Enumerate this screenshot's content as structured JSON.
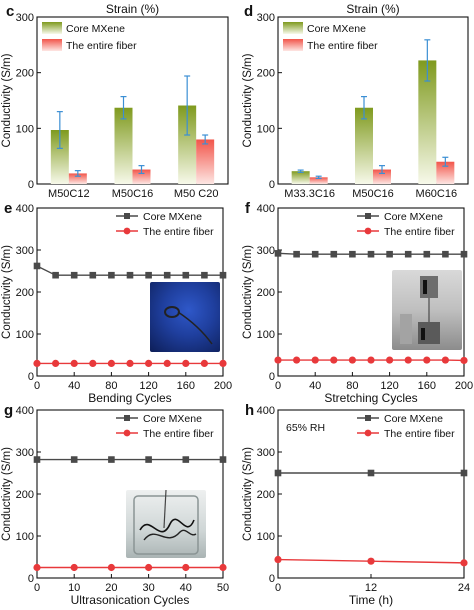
{
  "colors": {
    "core_line": "#4a4a4a",
    "fiber_line": "#e8393b",
    "error_bar": "#3b8fd4",
    "bar_core_top": "#7f9a1e",
    "bar_fiber_top": "#f2554a"
  },
  "photos": {
    "e": "hand-holding-fiber-photo",
    "f": "tensile-tester-photo",
    "g": "beaker-with-fibers-photo"
  },
  "chart_data": [
    {
      "panel": "c",
      "type": "bar",
      "title": "Strain (%)",
      "ylabel": "Conductivity (S/m)",
      "xlabel": "",
      "categories": [
        "M50C12",
        "M50C16",
        "M50 C20"
      ],
      "ylim": [
        0,
        300
      ],
      "yticks": [
        0,
        100,
        200,
        300
      ],
      "series": [
        {
          "name": "Core MXene",
          "values": [
            97,
            137,
            141
          ],
          "errors": [
            33,
            20,
            53
          ]
        },
        {
          "name": "The entire fiber",
          "values": [
            19,
            26,
            80
          ],
          "errors": [
            5,
            7,
            8
          ]
        }
      ],
      "legend": "top-left",
      "grid": false
    },
    {
      "panel": "d",
      "type": "bar",
      "title": "Strain (%)",
      "ylabel": "Conductivity (S/m)",
      "xlabel": "",
      "categories": [
        "M33.3C16",
        "M50C16",
        "M60C16"
      ],
      "ylim": [
        0,
        300
      ],
      "yticks": [
        0,
        100,
        200,
        300
      ],
      "series": [
        {
          "name": "Core MXene",
          "values": [
            23,
            137,
            222
          ],
          "errors": [
            2,
            20,
            37
          ]
        },
        {
          "name": "The entire fiber",
          "values": [
            12,
            26,
            40
          ],
          "errors": [
            2,
            7,
            8
          ]
        }
      ],
      "legend": "top-left",
      "grid": false
    },
    {
      "panel": "e",
      "type": "line",
      "xlabel": "Bending Cycles",
      "ylabel": "Conductivity (S/m)",
      "xlim": [
        0,
        200
      ],
      "xticks": [
        0,
        40,
        80,
        120,
        160,
        200
      ],
      "ylim": [
        0,
        400
      ],
      "yticks": [
        0,
        100,
        200,
        300,
        400
      ],
      "x": [
        0,
        20,
        40,
        60,
        80,
        100,
        120,
        140,
        160,
        180,
        200
      ],
      "series": [
        {
          "name": "Core MXene",
          "marker": "square",
          "values": [
            262,
            240,
            240,
            240,
            240,
            240,
            240,
            240,
            240,
            240,
            240
          ]
        },
        {
          "name": "The entire fiber",
          "marker": "circle",
          "values": [
            30,
            30,
            30,
            30,
            30,
            30,
            30,
            30,
            30,
            30,
            30
          ]
        }
      ],
      "legend": "top-right",
      "grid": false
    },
    {
      "panel": "f",
      "type": "line",
      "xlabel": "Stretching Cycles",
      "ylabel": "Conductivity (S/m)",
      "xlim": [
        0,
        200
      ],
      "xticks": [
        0,
        40,
        80,
        120,
        160,
        200
      ],
      "ylim": [
        0,
        400
      ],
      "yticks": [
        0,
        100,
        200,
        300,
        400
      ],
      "x": [
        0,
        20,
        40,
        60,
        80,
        100,
        120,
        140,
        160,
        180,
        200
      ],
      "series": [
        {
          "name": "Core MXene",
          "marker": "square",
          "values": [
            292,
            290,
            290,
            290,
            290,
            290,
            290,
            290,
            290,
            290,
            290
          ]
        },
        {
          "name": "The entire fiber",
          "marker": "circle",
          "values": [
            38,
            38,
            38,
            38,
            38,
            38,
            38,
            38,
            38,
            38,
            37
          ]
        }
      ],
      "legend": "top-right",
      "grid": false
    },
    {
      "panel": "g",
      "type": "line",
      "xlabel": "Ultrasonication Cycles",
      "ylabel": "Conductivity (S/m)",
      "xlim": [
        0,
        50
      ],
      "xticks": [
        0,
        10,
        20,
        30,
        40,
        50
      ],
      "ylim": [
        0,
        400
      ],
      "yticks": [
        0,
        100,
        200,
        300,
        400
      ],
      "x": [
        0,
        10,
        20,
        30,
        40,
        50
      ],
      "series": [
        {
          "name": "Core MXene",
          "marker": "square",
          "values": [
            282,
            282,
            282,
            282,
            282,
            282
          ]
        },
        {
          "name": "The entire fiber",
          "marker": "circle",
          "values": [
            25,
            25,
            25,
            25,
            25,
            25
          ]
        }
      ],
      "legend": "top-right",
      "grid": false
    },
    {
      "panel": "h",
      "type": "line",
      "xlabel": "Time (h)",
      "ylabel": "Conductivity (S/m)",
      "xlim": [
        0,
        24
      ],
      "xticks": [
        0,
        12,
        24
      ],
      "ylim": [
        0,
        400
      ],
      "yticks": [
        0,
        100,
        200,
        300,
        400
      ],
      "x": [
        0,
        12,
        24
      ],
      "series": [
        {
          "name": "Core MXene",
          "marker": "square",
          "values": [
            250,
            250,
            250
          ]
        },
        {
          "name": "The entire fiber",
          "marker": "circle",
          "values": [
            44,
            40,
            36
          ]
        }
      ],
      "annotations": [
        "65% RH"
      ],
      "legend": "top-right",
      "grid": false
    }
  ]
}
